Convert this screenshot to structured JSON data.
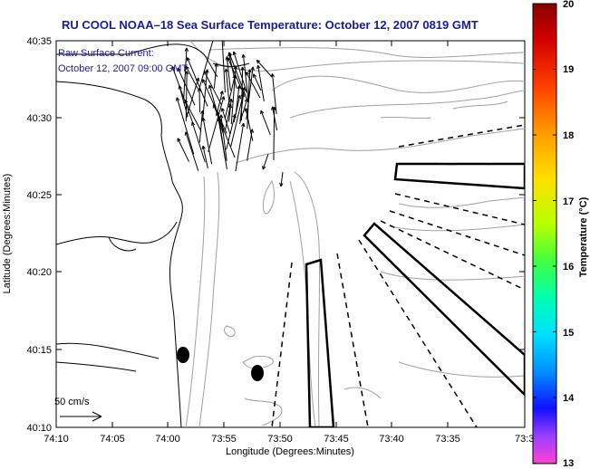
{
  "title": "RU COOL  NOAA–18  Sea Surface Temperature:  October 12, 2007 0819 GMT",
  "annotation": {
    "line1": "Raw Surface Current:",
    "line2": "October 12, 2007 09:00 GMT"
  },
  "scale": {
    "label": "50 cm/s"
  },
  "axes": {
    "xlabel": "Longitude (Degrees:Minutes)",
    "ylabel": "Latitude (Degrees:Minutes)",
    "xticks": [
      "74:10",
      "74:05",
      "74:00",
      "73:55",
      "73:50",
      "73:45",
      "73:40",
      "73:35",
      "73:3"
    ],
    "yticks": [
      "40:35",
      "40:30",
      "40:25",
      "40:20",
      "40:15",
      "40:10"
    ]
  },
  "colorbar": {
    "label": "Temperature (°C)",
    "ticks": [
      "20",
      "19",
      "18",
      "17",
      "16",
      "15",
      "14",
      "13"
    ],
    "min": 13,
    "max": 20
  },
  "colors": {
    "title": "#1a1aa0",
    "contour": "#a0a0a0",
    "coast": "#000000"
  }
}
